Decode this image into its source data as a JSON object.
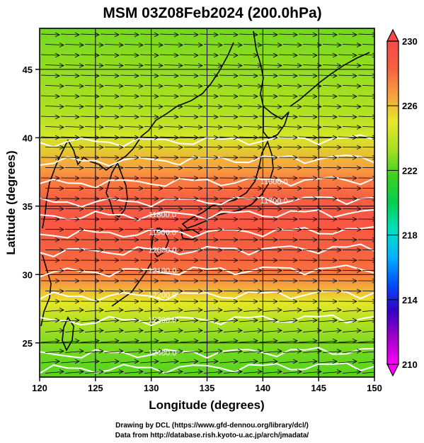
{
  "chart_data": {
    "type": "heatmap",
    "title": "MSM 03Z08Feb2024 (200.0hPa)",
    "xlabel": "Longitude (degrees)",
    "ylabel": "Latitude  (degrees)",
    "xlim": [
      120,
      150
    ],
    "ylim": [
      22.5,
      48
    ],
    "xticks": [
      "120",
      "125",
      "130",
      "135",
      "140",
      "145",
      "150"
    ],
    "yticks": [
      "25",
      "30",
      "35",
      "40",
      "45"
    ],
    "colorbar": {
      "min": 210,
      "max": 230,
      "ticks": [
        "210",
        "214",
        "218",
        "222",
        "226",
        "230"
      ],
      "colors": [
        "#ff00ff",
        "#a000c8",
        "#3200c8",
        "#0050ff",
        "#00b4ff",
        "#00e0c0",
        "#00d050",
        "#40d020",
        "#a8e020",
        "#e8e828",
        "#f8a040",
        "#f86040",
        "#f84848"
      ]
    },
    "field_rows": [
      {
        "lat": 48,
        "value": 222.5
      },
      {
        "lat": 45,
        "value": 223.0
      },
      {
        "lat": 42,
        "value": 223.5
      },
      {
        "lat": 40,
        "value": 224.5
      },
      {
        "lat": 38,
        "value": 226.5
      },
      {
        "lat": 37,
        "value": 227.5
      },
      {
        "lat": 35.5,
        "value": 228.5
      },
      {
        "lat": 34,
        "value": 229.0
      },
      {
        "lat": 32,
        "value": 228.5
      },
      {
        "lat": 30.5,
        "value": 228.0
      },
      {
        "lat": 29.5,
        "value": 227.0
      },
      {
        "lat": 28,
        "value": 225.0
      },
      {
        "lat": 26.5,
        "value": 223.5
      },
      {
        "lat": 24.5,
        "value": 222.5
      },
      {
        "lat": 22.5,
        "value": 222.0
      }
    ],
    "contours": [
      {
        "label": "11600.0",
        "lat": 36.8
      },
      {
        "label": "11700.0",
        "lat": 35.4
      },
      {
        "label": "11800.0",
        "lat": 34.4
      },
      {
        "label": "11900.0",
        "lat": 33.1
      },
      {
        "label": "12000.0",
        "lat": 31.8
      },
      {
        "label": "12100.0",
        "lat": 30.3
      },
      {
        "label": "12200.0",
        "lat": 28.5
      },
      {
        "label": "12300.0",
        "lat": 26.7
      },
      {
        "label": "12400.0",
        "lat": 24.3
      }
    ],
    "extra_contours_lat": [
      39.8,
      38.4,
      23.2
    ],
    "wind": {
      "direction": "westerly",
      "arrow_color": "#000000"
    }
  },
  "footer": {
    "line1": "Drawing by DCL (https://www.gfd-dennou.org/library/dcl/)",
    "line2": "Data from http://database.rish.kyoto-u.ac.jp/arch/jmadata/"
  }
}
